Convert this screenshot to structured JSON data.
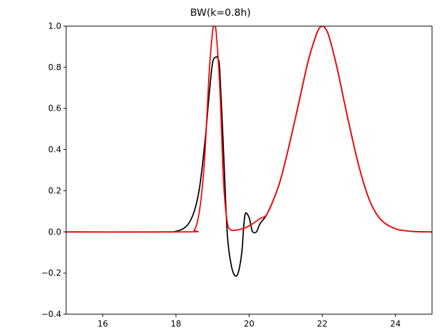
{
  "chart_data": {
    "type": "line",
    "title": "BW(k=0.8h)",
    "xlabel": "",
    "ylabel": "",
    "xlim": [
      15,
      25
    ],
    "ylim": [
      -0.4,
      1.0
    ],
    "xticks": [
      16,
      18,
      20,
      22,
      24
    ],
    "xtick_labels": [
      "16",
      "18",
      "20",
      "22",
      "24"
    ],
    "yticks": [
      -0.4,
      -0.2,
      0.0,
      0.2,
      0.4,
      0.6,
      0.8,
      1.0
    ],
    "ytick_labels": [
      "−0.4",
      "−0.2",
      "0.0",
      "0.2",
      "0.4",
      "0.6",
      "0.8",
      "1.0"
    ],
    "grid": false,
    "series": [
      {
        "name": "black",
        "color": "#000000",
        "x": [
          15,
          17.5,
          18.0,
          18.3,
          18.5,
          18.65,
          18.8,
          18.9,
          19.0,
          19.1,
          19.15,
          19.2,
          19.3,
          19.4,
          19.5,
          19.6,
          19.7,
          19.8,
          19.85,
          19.9,
          20.0,
          20.05,
          20.1,
          20.2,
          20.3,
          20.5,
          20.8,
          21.0,
          21.3,
          21.6,
          21.8,
          21.9,
          22.0,
          22.1,
          22.2,
          22.4,
          22.7,
          23.0,
          23.3,
          23.6,
          24.0,
          24.5,
          25.0
        ],
        "y": [
          0.0,
          0.0,
          0.003,
          0.03,
          0.1,
          0.22,
          0.45,
          0.65,
          0.82,
          0.85,
          0.84,
          0.78,
          0.4,
          0.0,
          -0.15,
          -0.21,
          -0.2,
          -0.1,
          0.02,
          0.09,
          0.07,
          0.03,
          0.0,
          0.0,
          0.04,
          0.09,
          0.22,
          0.35,
          0.58,
          0.82,
          0.94,
          0.985,
          1.0,
          0.985,
          0.94,
          0.8,
          0.55,
          0.32,
          0.15,
          0.06,
          0.015,
          0.002,
          0.0
        ]
      },
      {
        "name": "red",
        "color": "#ff0000",
        "x": [
          15,
          18.3,
          18.5,
          18.6,
          18.7,
          18.8,
          18.9,
          19.0,
          19.05,
          19.1,
          19.2,
          19.3,
          19.4,
          19.5,
          19.6,
          19.7,
          19.9,
          20.1,
          20.3,
          20.5,
          20.8,
          21.0,
          21.3,
          21.6,
          21.8,
          21.9,
          22.0,
          22.1,
          22.2,
          22.4,
          22.7,
          23.0,
          23.3,
          23.6,
          24.0,
          24.5,
          25.0
        ],
        "y": [
          0.0,
          0.0,
          0.01,
          0.06,
          0.18,
          0.4,
          0.75,
          0.97,
          1.0,
          0.97,
          0.7,
          0.25,
          0.05,
          0.01,
          0.008,
          0.01,
          0.02,
          0.04,
          0.065,
          0.09,
          0.22,
          0.35,
          0.58,
          0.82,
          0.94,
          0.985,
          1.0,
          0.985,
          0.94,
          0.8,
          0.55,
          0.32,
          0.15,
          0.06,
          0.015,
          0.002,
          0.0
        ]
      }
    ]
  }
}
